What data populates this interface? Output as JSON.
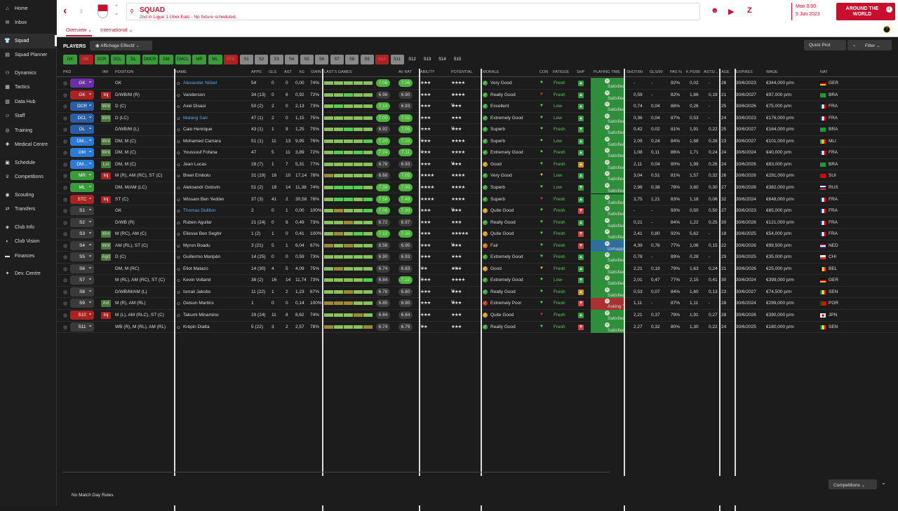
{
  "sidebar": {
    "items": [
      {
        "label": "Home",
        "icon": "home-icon",
        "glyph": "⌂"
      },
      {
        "label": "Inbox",
        "icon": "inbox-icon",
        "glyph": "✉"
      },
      {
        "label": "Squad",
        "icon": "shirt-icon",
        "glyph": "👕",
        "active": true
      },
      {
        "label": "Squad Planner",
        "icon": "planner-icon",
        "glyph": "▤"
      },
      {
        "label": "Dynamics",
        "icon": "dynamics-icon",
        "glyph": "⚇"
      },
      {
        "label": "Tactics",
        "icon": "tactics-icon",
        "glyph": "▦"
      },
      {
        "label": "Data Hub",
        "icon": "data-icon",
        "glyph": "▥"
      },
      {
        "label": "Staff",
        "icon": "staff-icon",
        "glyph": "☺"
      },
      {
        "label": "Training",
        "icon": "training-icon",
        "glyph": "◎"
      },
      {
        "label": "Medical Centre",
        "icon": "medical-icon",
        "glyph": "✚"
      },
      {
        "label": "Schedule",
        "icon": "schedule-icon",
        "glyph": "▣"
      },
      {
        "label": "Competitions",
        "icon": "trophy-icon",
        "glyph": "♕"
      },
      {
        "label": "Scouting",
        "icon": "scouting-icon",
        "glyph": "◉"
      },
      {
        "label": "Transfers",
        "icon": "transfers-icon",
        "glyph": "⇄"
      },
      {
        "label": "Club Info",
        "icon": "club-info-icon",
        "glyph": "◈"
      },
      {
        "label": "Club Vision",
        "icon": "vision-icon",
        "glyph": "◐"
      },
      {
        "label": "Finances",
        "icon": "finances-icon",
        "glyph": "▬"
      },
      {
        "label": "Dev. Centre",
        "icon": "dev-centre-icon",
        "glyph": "✦"
      }
    ]
  },
  "header": {
    "title": "SQUAD",
    "subtitle": "2nd in Ligue 1 Uber Eats - No fixture scheduled.",
    "date_time": "Mon 0:00",
    "date": "5 Jun 2023",
    "continue_label": "AROUND THE WORLD",
    "continue_icon_text": "i"
  },
  "tabs": [
    {
      "label": "Overview ⌄"
    },
    {
      "label": "International ⌄"
    }
  ],
  "toolbar": {
    "players_title": "PLAYERS",
    "view_label": "Affichage Effectif ⌄",
    "quick_pick_label": "Quick Pick",
    "filter_label": "Filter ⌄"
  },
  "position_buttons": [
    "GK",
    "GK",
    "DCR",
    "DCL",
    "DL",
    "DMCR",
    "DM",
    "DMCL",
    "MR",
    "ML",
    "STC",
    "S1",
    "S2",
    "S3",
    "S4",
    "S5",
    "S6",
    "S7",
    "S8",
    "S9",
    "S10",
    "S11",
    "S12",
    "S13",
    "S14",
    "S15"
  ],
  "columns": {
    "pkd": "PKD",
    "inf": "INF",
    "position": "POSITION",
    "name": "NAME",
    "apps": "APPS",
    "gls": "GLS",
    "ast": "AST",
    "xg": "XG",
    "gwin": "GWIN",
    "last5": "LAST 5 GAMES",
    "avrat": "AV RAT",
    "ability": "ABILITY",
    "potential": "POTENTIAL",
    "morale": "MORALE",
    "con": "CON",
    "fatigue": "FATIGUE",
    "shp": "SHP",
    "playing_time": "PLAYING TIME",
    "shot90": "SHOT/90",
    "gls90": "GLS/90",
    "pas": "PAS %",
    "kps90": "K PS/90",
    "asts": "ASTS/...",
    "age": "AGE",
    "expires": "EXPIRES",
    "wage": "WAGE",
    "nat": "NAT"
  },
  "players": [
    {
      "pkd": "GK",
      "pkd_color": "#6a2ea8",
      "inf": "",
      "pos": "GK",
      "name": "Alexander Nübel",
      "link": true,
      "apps": "54",
      "gls": "0",
      "ast": "0",
      "xg": "0,00",
      "gwin": "74%",
      "last": "7.06",
      "av": "7.06",
      "ab": "★★★",
      "abx": "",
      "po": "★★★★",
      "pox": "",
      "mor": "Very Good",
      "morc": "#3aa33a",
      "con": "green",
      "fat": "Fresh",
      "shp": "up",
      "pt": "Satisfied",
      "ptc": "g",
      "shot": "-",
      "gls90": "-",
      "pas": "92%",
      "kps": "0,02",
      "asts": "-",
      "age": "26",
      "exp": "30/6/2023",
      "wage": "€344,000 p/m",
      "nat": "GER"
    },
    {
      "pkd": "GK",
      "pkd_color": "#a22",
      "inf": "Inj",
      "pos": "D/WB/M (R)",
      "name": "Vanderson",
      "link": false,
      "apps": "34 (13)",
      "gls": "0",
      "ast": "6",
      "xg": "0,92",
      "gwin": "72%",
      "last": "6.96",
      "av": "6.90",
      "ab": "★★★",
      "abx": "",
      "po": "★★★★",
      "pox": "★",
      "mor": "Really Good",
      "morc": "#3aa33a",
      "con": "red",
      "fat": "Fresh",
      "shp": "up",
      "pt": "Satisfied",
      "ptc": "g",
      "shot": "0,59",
      "gls90": "-",
      "pas": "82%",
      "kps": "1,86",
      "asts": "0,19",
      "age": "21",
      "exp": "30/6/2027",
      "wage": "€97,000 p/m",
      "nat": "BRA"
    },
    {
      "pkd": "DCR",
      "pkd_color": "#2a5fa8",
      "inf": "Wnt",
      "pos": "D (C)",
      "name": "Axel Disasi",
      "link": false,
      "apps": "50 (2)",
      "gls": "2",
      "ast": "0",
      "xg": "2,13",
      "gwin": "73%",
      "last": "7.14",
      "av": "6.93",
      "ab": "★★★",
      "abx": "",
      "po": "★★★",
      "pox": "½",
      "mor": "Excellent",
      "morc": "#3aa33a",
      "con": "green",
      "fat": "Low",
      "shp": "up",
      "pt": "Satisfied",
      "ptc": "g",
      "shot": "0,74",
      "gls90": "0,04",
      "pas": "88%",
      "kps": "0,26",
      "asts": "-",
      "age": "25",
      "exp": "30/6/2026",
      "wage": "€75,000 p/m",
      "nat": "FRA"
    },
    {
      "pkd": "DCL",
      "pkd_color": "#2a5fa8",
      "inf": "Wnt",
      "pos": "D (LC)",
      "name": "Malang Sarr",
      "link": true,
      "apps": "47 (1)",
      "gls": "2",
      "ast": "0",
      "xg": "1,15",
      "gwin": "75%",
      "last": "7.00",
      "av": "7.02",
      "ab": "★★★",
      "abx": "",
      "po": "★★★",
      "pox": "",
      "mor": "Extremely Good",
      "morc": "#3aa33a",
      "con": "green",
      "fat": "Low",
      "shp": "up",
      "pt": "Satisfied",
      "ptc": "g",
      "shot": "0,36",
      "gls90": "0,04",
      "pas": "87%",
      "kps": "0,53",
      "asts": "-",
      "age": "24",
      "exp": "30/6/2023",
      "wage": "€176,000 p/m",
      "nat": "FRA"
    },
    {
      "pkd": "DL",
      "pkd_color": "#2a5fa8",
      "inf": "",
      "pos": "D/WB/M (L)",
      "name": "Caio Henrique",
      "link": false,
      "apps": "43 (1)",
      "gls": "1",
      "ast": "9",
      "xg": "1,25",
      "gwin": "75%",
      "last": "6.92",
      "av": "7.06",
      "ab": "★★★",
      "abx": "",
      "po": "★★★",
      "pox": "½",
      "mor": "Superb",
      "morc": "#3aa33a",
      "con": "green",
      "fat": "Fresh",
      "shp": "down",
      "pt": "Satisfied",
      "ptc": "g",
      "shot": "0,42",
      "gls90": "0,02",
      "pas": "81%",
      "kps": "1,91",
      "asts": "0,22",
      "age": "25",
      "exp": "30/6/2027",
      "wage": "€164,000 p/m",
      "nat": "BRA"
    },
    {
      "pkd": "DM...",
      "pkd_color": "#2a7ad8",
      "inf": "Wnt",
      "pos": "DM, M (C)",
      "name": "Mohamed Camara",
      "link": false,
      "apps": "51 (1)",
      "gls": "11",
      "ast": "13",
      "xg": "9,95",
      "gwin": "76%",
      "last": "7.20",
      "av": "7.10",
      "ab": "★★★",
      "abx": "½",
      "po": "★★★★",
      "pox": "",
      "mor": "Superb",
      "morc": "#3aa33a",
      "con": "green",
      "fat": "Low",
      "shp": "up",
      "pt": "Satisfied",
      "ptc": "g",
      "shot": "2,09",
      "gls90": "0,24",
      "pas": "84%",
      "kps": "1,88",
      "asts": "0,28",
      "age": "23",
      "exp": "30/6/2027",
      "wage": "€101,000 p/m",
      "nat": "MLI"
    },
    {
      "pkd": "DM",
      "pkd_color": "#2a7ad8",
      "inf": "Wnt",
      "pos": "DM, M (C)",
      "name": "Youssouf Fofana",
      "link": false,
      "apps": "47",
      "gls": "5",
      "ast": "11",
      "xg": "3,89",
      "gwin": "72%",
      "last": "7.24",
      "av": "7.11",
      "ab": "★★★",
      "abx": "½",
      "po": "★★★★",
      "pox": "",
      "mor": "Extremely Good",
      "morc": "#3aa33a",
      "con": "green",
      "fat": "Fresh",
      "shp": "up",
      "pt": "Satisfied",
      "ptc": "g",
      "shot": "1,08",
      "gls90": "0,11",
      "pas": "86%",
      "kps": "1,71",
      "asts": "0,24",
      "age": "24",
      "exp": "30/6/2024",
      "wage": "€40,000 p/m",
      "nat": "FRA"
    },
    {
      "pkd": "DM...",
      "pkd_color": "#2a7ad8",
      "inf": "Lst",
      "pos": "DM, M (C)",
      "name": "Jean Lucas",
      "link": false,
      "apps": "28 (7)",
      "gls": "1",
      "ast": "7",
      "xg": "5,31",
      "gwin": "77%",
      "last": "6.78",
      "av": "6.93",
      "ab": "★★★",
      "abx": "",
      "po": "★★★",
      "pox": "½",
      "mor": "Good",
      "morc": "#cfa020",
      "con": "green",
      "fat": "Fresh",
      "shp": "flat",
      "pt": "Satisfied",
      "ptc": "g",
      "shot": "2,11",
      "gls90": "0,04",
      "pas": "80%",
      "kps": "1,99",
      "asts": "0,26",
      "age": "24",
      "exp": "30/6/2026",
      "wage": "€83,000 p/m",
      "nat": "BRA"
    },
    {
      "pkd": "MR",
      "pkd_color": "#3a9b3a",
      "inf": "Inj",
      "pos": "M (R), AM (RC), ST (C)",
      "name": "Breel Embolo",
      "link": false,
      "apps": "31 (19)",
      "gls": "16",
      "ast": "10",
      "xg": "17,14",
      "gwin": "78%",
      "last": "6.68",
      "av": "7.05",
      "ab": "★★★★",
      "abx": "",
      "po": "★★★★",
      "pox": "",
      "mor": "Very Good",
      "morc": "#3aa33a",
      "con": "yellow",
      "fat": "Low",
      "shp": "up",
      "pt": "Satisfied",
      "ptc": "g",
      "shot": "3,04",
      "gls90": "0,51",
      "pas": "81%",
      "kps": "1,57",
      "asts": "0,32",
      "age": "26",
      "exp": "30/6/2026",
      "wage": "€291,000 p/m",
      "nat": "SUI"
    },
    {
      "pkd": "ML",
      "pkd_color": "#3a9b3a",
      "inf": "",
      "pos": "DM, M/AM (LC)",
      "name": "Aleksandr Golovin",
      "link": false,
      "apps": "51 (2)",
      "gls": "18",
      "ast": "14",
      "xg": "11,38",
      "gwin": "74%",
      "last": "7.38",
      "av": "7.30",
      "ab": "★★★★",
      "abx": "",
      "po": "★★★★",
      "pox": "",
      "mor": "Superb",
      "morc": "#3aa33a",
      "con": "green",
      "fat": "Low",
      "shp": "down",
      "pt": "Satisfied",
      "ptc": "g",
      "shot": "2,98",
      "gls90": "0,38",
      "pas": "78%",
      "kps": "3,60",
      "asts": "0,30",
      "age": "27",
      "exp": "30/6/2026",
      "wage": "€382,000 p/m",
      "nat": "RUS"
    },
    {
      "pkd": "STC",
      "pkd_color": "#a22",
      "inf": "Inj",
      "pos": "ST (C)",
      "name": "Wissam Ben Yedder",
      "link": false,
      "apps": "37 (3)",
      "gls": "41",
      "ast": "2",
      "xg": "30,58",
      "gwin": "78%",
      "last": "7.58",
      "av": "7.48",
      "ab": "★★★★",
      "abx": "",
      "po": "★★★★",
      "pox": "",
      "mor": "Superb",
      "morc": "#3aa33a",
      "con": "red",
      "fat": "Fresh",
      "shp": "up",
      "pt": "Satisfied",
      "ptc": "g",
      "shot": "3,75",
      "gls90": "1,21",
      "pas": "83%",
      "kps": "1,18",
      "asts": "0,06",
      "age": "32",
      "exp": "30/6/2024",
      "wage": "€648,000 p/m",
      "nat": "FRA"
    },
    {
      "pkd": "S1",
      "pkd_color": "#3a3a3a",
      "inf": "",
      "pos": "GK",
      "name": "Thomas Didillon",
      "link": true,
      "apps": "2",
      "gls": "0",
      "ast": "1",
      "xg": "0,00",
      "gwin": "100%",
      "last": "7.06",
      "av": "7.30",
      "ab": "★★★",
      "abx": "",
      "po": "★★★",
      "pox": "½",
      "mor": "Quite Good",
      "morc": "#cfa020",
      "con": "green",
      "fat": "Fresh",
      "shp": "down2",
      "pt": "Satisfied",
      "ptc": "g",
      "shot": "-",
      "gls90": "-",
      "pas": "93%",
      "kps": "0,50",
      "asts": "0,50",
      "age": "27",
      "exp": "30/6/2023",
      "wage": "€65,000 p/m",
      "nat": "FRA"
    },
    {
      "pkd": "S2",
      "pkd_color": "#3a3a3a",
      "inf": "",
      "pos": "D/WB (R)",
      "name": "Ruben Aguilar",
      "link": false,
      "apps": "21 (24)",
      "gls": "0",
      "ast": "6",
      "xg": "0,49",
      "gwin": "73%",
      "last": "6.72",
      "av": "6.97",
      "ab": "★★★",
      "abx": "",
      "po": "★★★",
      "pox": "",
      "mor": "Really Good",
      "morc": "#3aa33a",
      "con": "green",
      "fat": "Fresh",
      "shp": "up",
      "pt": "Satisfied",
      "ptc": "g",
      "shot": "0,21",
      "gls90": "-",
      "pas": "84%",
      "kps": "1,22",
      "asts": "0,25",
      "age": "30",
      "exp": "30/6/2026",
      "wage": "€121,000 p/m",
      "nat": "FRA"
    },
    {
      "pkd": "S3",
      "pkd_color": "#3a3a3a",
      "inf": "Wnt",
      "pos": "M (RC), AM (C)",
      "name": "Eliesse Ben Seghir",
      "link": false,
      "apps": "1 (2)",
      "gls": "1",
      "ast": "0",
      "xg": "0,41",
      "gwin": "100%",
      "last": "7.12",
      "av": "7.30",
      "ab": "★★★",
      "abx": "",
      "po": "★★★★★",
      "pox": "",
      "mor": "Quite Good",
      "morc": "#cfa020",
      "con": "green",
      "fat": "Fresh",
      "shp": "down2",
      "pt": "Satisfied",
      "ptc": "g",
      "shot": "2,41",
      "gls90": "0,80",
      "pas": "92%",
      "kps": "5,62",
      "asts": "-",
      "age": "18",
      "exp": "30/6/2025",
      "wage": "€54,000 p/m",
      "nat": "FRA"
    },
    {
      "pkd": "S4",
      "pkd_color": "#3a3a3a",
      "inf": "Wnt",
      "pos": "AM (RL), ST (C)",
      "name": "Myron Boadu",
      "link": false,
      "apps": "3 (21)",
      "gls": "5",
      "ast": "1",
      "xg": "6,04",
      "gwin": "67%",
      "last": "6.56",
      "av": "6.95",
      "ab": "★★★",
      "abx": "",
      "po": "★★★",
      "pox": "½",
      "mor": "Fair",
      "morc": "#d07020",
      "con": "green",
      "fat": "Fresh",
      "shp": "down2",
      "pt": "Unhappy (Inter...",
      "ptc": "b",
      "shot": "4,39",
      "gls90": "0,76",
      "pas": "77%",
      "kps": "1,06",
      "asts": "0,15",
      "age": "22",
      "exp": "30/6/2026",
      "wage": "€99,500 p/m",
      "nat": "NED"
    },
    {
      "pkd": "S5",
      "pkd_color": "#3a3a3a",
      "inf": "Agd",
      "pos": "D (C)",
      "name": "Guillermo Maripán",
      "link": false,
      "apps": "14 (25)",
      "gls": "0",
      "ast": "0",
      "xg": "0,59",
      "gwin": "73%",
      "last": "6.90",
      "av": "6.93",
      "ab": "★★★",
      "abx": "",
      "po": "★★★",
      "pox": "",
      "mor": "Extremely Good",
      "morc": "#3aa33a",
      "con": "green",
      "fat": "Fresh",
      "shp": "up",
      "pt": "Satisfied",
      "ptc": "g",
      "shot": "0,78",
      "gls90": "-",
      "pas": "89%",
      "kps": "0,28",
      "asts": "-",
      "age": "29",
      "exp": "30/6/2025",
      "wage": "€35,000 p/m",
      "nat": "CHI"
    },
    {
      "pkd": "S6",
      "pkd_color": "#3a3a3a",
      "inf": "",
      "pos": "DM, M (RC)",
      "name": "Eliot Matazo",
      "link": false,
      "apps": "14 (30)",
      "gls": "4",
      "ast": "5",
      "xg": "4,09",
      "gwin": "75%",
      "last": "6.74",
      "av": "6.83",
      "ab": "★★",
      "abx": "½",
      "po": "★★★",
      "pox": "★½",
      "mor": "Good",
      "morc": "#cfa020",
      "con": "yellow",
      "fat": "Fresh",
      "shp": "flat2",
      "pt": "Satisfied",
      "ptc": "g",
      "shot": "2,21",
      "gls90": "0,19",
      "pas": "79%",
      "kps": "1,63",
      "asts": "0,24",
      "age": "21",
      "exp": "30/6/2026",
      "wage": "€25,000 p/m",
      "nat": "BEL"
    },
    {
      "pkd": "S7",
      "pkd_color": "#3a3a3a",
      "inf": "",
      "pos": "M (RL), AM (RC), ST (C)",
      "name": "Kevin Volland",
      "link": false,
      "apps": "38 (2)",
      "gls": "16",
      "ast": "14",
      "xg": "11,74",
      "gwin": "73%",
      "last": "6.84",
      "av": "7.22",
      "ab": "★★★",
      "abx": "½",
      "po": "★★★★",
      "pox": "",
      "mor": "Extremely Good",
      "morc": "#3aa33a",
      "con": "green",
      "fat": "Low",
      "shp": "down",
      "pt": "Satisfied",
      "ptc": "g",
      "shot": "2,01",
      "gls90": "0,47",
      "pas": "77%",
      "kps": "2,15",
      "asts": "0,41",
      "age": "30",
      "exp": "30/6/2024",
      "wage": "€399,000 p/m",
      "nat": "GER"
    },
    {
      "pkd": "S8",
      "pkd_color": "#3a3a3a",
      "inf": "",
      "pos": "D/WB/M/AM (L)",
      "name": "Ismail Jakobs",
      "link": false,
      "apps": "11 (22)",
      "gls": "1",
      "ast": "2",
      "xg": "1,23",
      "gwin": "67%",
      "last": "6.78",
      "av": "6.80",
      "ab": "★★★",
      "abx": "",
      "po": "★★★",
      "pox": "½",
      "mor": "Really Good",
      "morc": "#3aa33a",
      "con": "green",
      "fat": "Fresh",
      "shp": "flat",
      "pt": "Satisfied",
      "ptc": "g",
      "shot": "0,53",
      "gls90": "0,07",
      "pas": "84%",
      "kps": "1,60",
      "asts": "0,13",
      "age": "23",
      "exp": "30/6/2027",
      "wage": "€74,500 p/m",
      "nat": "SEN"
    },
    {
      "pkd": "S9",
      "pkd_color": "#3a3a3a",
      "inf": "Avl",
      "pos": "M (R), AM (RL)",
      "name": "Gelson Martins",
      "link": false,
      "apps": "1",
      "gls": "0",
      "ast": "0",
      "xg": "0,14",
      "gwin": "100%",
      "last": "6.85",
      "av": "6.90",
      "ab": "★★★",
      "abx": "",
      "po": "★★★",
      "pox": "½",
      "mor": "Extremely Poor",
      "morc": "#c03030",
      "con": "green",
      "fat": "Fresh",
      "shp": "down2",
      "pt": "Asking To Leave",
      "ptc": "r",
      "shot": "1,11",
      "gls90": "-",
      "pas": "87%",
      "kps": "1,11",
      "asts": "-",
      "age": "28",
      "exp": "30/6/2024",
      "wage": "€299,000 p/m",
      "nat": "POR"
    },
    {
      "pkd": "S10",
      "pkd_color": "#a22",
      "inf": "Inj",
      "pos": "M (L), AM (RLC), ST (C)",
      "name": "Takumi Minamino",
      "link": false,
      "apps": "29 (24)",
      "gls": "11",
      "ast": "8",
      "xg": "8,62",
      "gwin": "74%",
      "last": "6.84",
      "av": "6.84",
      "ab": "★★★",
      "abx": "",
      "po": "★★★",
      "pox": "",
      "mor": "Quite Good",
      "morc": "#cfa020",
      "con": "red",
      "fat": "Fresh",
      "shp": "up",
      "pt": "Satisfied",
      "ptc": "g",
      "shot": "2,21",
      "gls90": "0,37",
      "pas": "79%",
      "kps": "1,91",
      "asts": "0,27",
      "age": "28",
      "exp": "30/6/2026",
      "wage": "€390,000 p/m",
      "nat": "JPN"
    },
    {
      "pkd": "S11",
      "pkd_color": "#3a3a3a",
      "inf": "",
      "pos": "WB (R), M (RL), AM (RL)",
      "name": "Krépin Diatta",
      "link": false,
      "apps": "5 (22)",
      "gls": "3",
      "ast": "2",
      "xg": "2,57",
      "gwin": "78%",
      "last": "6.74",
      "av": "6.79",
      "ab": "★★",
      "abx": "½",
      "po": "★★★",
      "pox": "",
      "mor": "Really Good",
      "morc": "#3aa33a",
      "con": "green",
      "fat": "Fresh",
      "shp": "down2",
      "pt": "Satisfied",
      "ptc": "g",
      "shot": "2,27",
      "gls90": "0,32",
      "pas": "80%",
      "kps": "1,30",
      "asts": "0,22",
      "age": "24",
      "exp": "30/6/2025",
      "wage": "€180,000 p/m",
      "nat": "SEN"
    }
  ],
  "bottom": {
    "no_match_day_rules": "No Match Day Rules",
    "competitions_label": "Competitions ⌄"
  }
}
